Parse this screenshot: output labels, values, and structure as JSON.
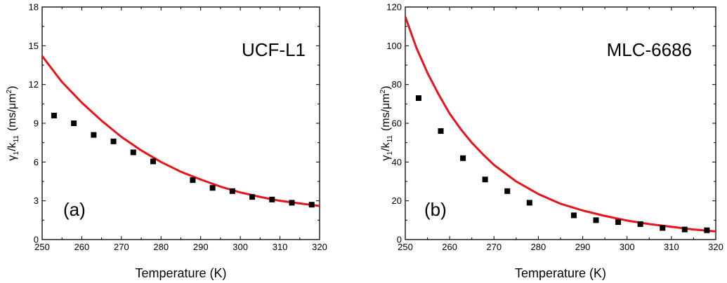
{
  "chart_data": [
    {
      "type": "scatter",
      "title": "UCF-L1",
      "panel_label": "(a)",
      "xlabel": "Temperature (K)",
      "ylabel": {
        "base": "γ",
        "base_sub": "1",
        "mid": "/k",
        "mid_sub": "11",
        "unit": "(ms/μm",
        "unit_sup": "2",
        "close": ")"
      },
      "xlim": [
        250,
        320
      ],
      "ylim": [
        0,
        18
      ],
      "xticks": [
        250,
        260,
        270,
        280,
        290,
        300,
        310,
        320
      ],
      "yticks": [
        0,
        3,
        6,
        9,
        12,
        15,
        18
      ],
      "grid": false,
      "series": [
        {
          "kind": "points",
          "color": "#000000",
          "x": [
            253,
            258,
            263,
            268,
            273,
            278,
            288,
            293,
            298,
            303,
            308,
            313,
            318
          ],
          "y": [
            9.6,
            9.0,
            8.1,
            7.6,
            6.75,
            6.05,
            4.6,
            4.0,
            3.75,
            3.3,
            3.1,
            2.85,
            2.7
          ]
        },
        {
          "kind": "line",
          "color": "#e8141c",
          "x": [
            250,
            255,
            260,
            265,
            270,
            275,
            280,
            285,
            290,
            295,
            300,
            305,
            310,
            315,
            320
          ],
          "y": [
            14.2,
            12.2,
            10.6,
            9.2,
            7.95,
            6.9,
            6.0,
            5.25,
            4.65,
            4.1,
            3.65,
            3.3,
            3.0,
            2.8,
            2.6
          ]
        }
      ]
    },
    {
      "type": "scatter",
      "title": "MLC-6686",
      "panel_label": "(b)",
      "xlabel": "Temperature (K)",
      "ylabel": {
        "base": "γ",
        "base_sub": "1",
        "mid": "/k",
        "mid_sub": "11",
        "unit": "(ms/μm",
        "unit_sup": "2",
        "close": ")"
      },
      "xlim": [
        250,
        320
      ],
      "ylim": [
        0,
        120
      ],
      "xticks": [
        250,
        260,
        270,
        280,
        290,
        300,
        310,
        320
      ],
      "yticks": [
        0,
        20,
        40,
        60,
        80,
        100,
        120
      ],
      "grid": false,
      "series": [
        {
          "kind": "points",
          "color": "#000000",
          "x": [
            253,
            258,
            263,
            268,
            273,
            278,
            288,
            293,
            298,
            303,
            308,
            313,
            318
          ],
          "y": [
            73,
            56,
            42,
            31,
            25,
            19,
            12.5,
            10,
            9,
            8,
            6,
            5.2,
            4.8
          ]
        },
        {
          "kind": "line",
          "color": "#e8141c",
          "x": [
            250,
            252.5,
            255,
            257.5,
            260,
            262.5,
            265,
            267.5,
            270,
            275,
            280,
            285,
            290,
            295,
            300,
            305,
            310,
            315,
            320
          ],
          "y": [
            115,
            99,
            86,
            75,
            65,
            57,
            50,
            44,
            38.5,
            30,
            23.5,
            18.5,
            15,
            12.2,
            9.8,
            8.0,
            6.6,
            5.2,
            4.2
          ]
        }
      ]
    }
  ]
}
